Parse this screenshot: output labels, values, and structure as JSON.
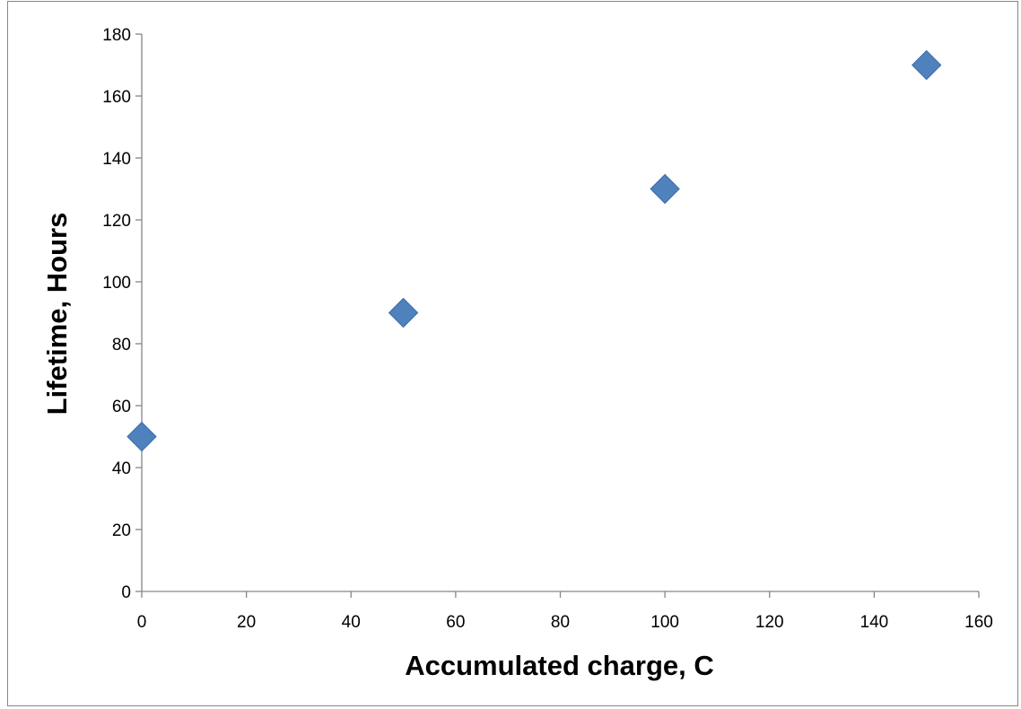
{
  "chart_data": {
    "type": "scatter",
    "title": "",
    "xlabel": "Accumulated charge, C",
    "ylabel": "Lifetime, Hours",
    "xlim": [
      0,
      160
    ],
    "ylim": [
      0,
      180
    ],
    "xticks": [
      "0",
      "20",
      "40",
      "60",
      "80",
      "100",
      "120",
      "140",
      "160"
    ],
    "yticks": [
      "0",
      "20",
      "40",
      "60",
      "80",
      "100",
      "120",
      "140",
      "160",
      "180"
    ],
    "grid": false,
    "legend": "none",
    "marker": "diamond",
    "color": "#4f81bd",
    "marker_edge_color": "#3c6ca8",
    "series": [
      {
        "x": [
          0,
          50,
          100,
          150
        ],
        "y": [
          50,
          90,
          130,
          170
        ]
      }
    ]
  }
}
